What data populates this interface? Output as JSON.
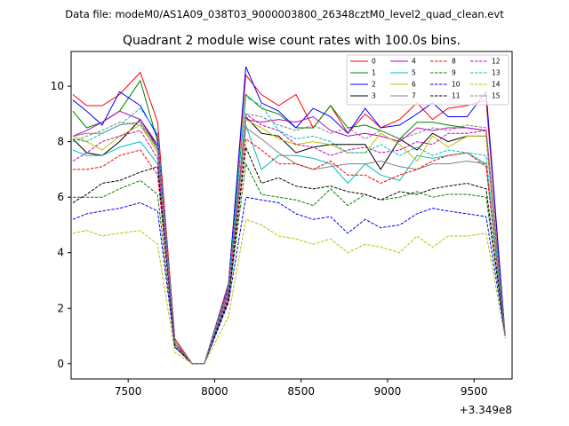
{
  "chart_data": {
    "type": "line",
    "suptitle": "Data file: modeM0/AS1A09_038T03_9000003800_26348cztM0_level2_quad_clean.evt",
    "title": "Quadrant 2 module wise count rates with 100.0s bins.",
    "xlabel": "",
    "ylabel": "",
    "offset_label": "+3.349e8",
    "xlim": [
      7170,
      9720
    ],
    "ylim": [
      -0.55,
      11.25
    ],
    "xticks": [
      7500,
      8000,
      8500,
      9000,
      9500
    ],
    "yticks": [
      0,
      2,
      4,
      6,
      8,
      10
    ],
    "legend_position": "top-right",
    "x": [
      7180,
      7260,
      7350,
      7450,
      7570,
      7670,
      7770,
      7870,
      7940,
      8080,
      8180,
      8270,
      8370,
      8470,
      8570,
      8670,
      8770,
      8870,
      8960,
      9070,
      9170,
      9260,
      9350,
      9460,
      9570,
      9680
    ],
    "series": [
      {
        "name": "0",
        "color": "#ff0000",
        "dash": "solid",
        "values": [
          9.7,
          9.3,
          9.3,
          9.7,
          10.5,
          8.7,
          0.9,
          0.0,
          0.0,
          2.9,
          10.4,
          9.7,
          9.3,
          9.7,
          8.5,
          9.3,
          8.3,
          9.0,
          8.5,
          8.8,
          9.4,
          8.8,
          9.2,
          9.3,
          9.5,
          1.0
        ]
      },
      {
        "name": "1",
        "color": "#008000",
        "dash": "solid",
        "values": [
          9.1,
          8.5,
          8.7,
          9.1,
          10.2,
          8.0,
          0.8,
          0.0,
          0.0,
          2.8,
          9.7,
          9.2,
          9.0,
          8.5,
          8.5,
          9.3,
          8.5,
          8.6,
          8.4,
          8.1,
          8.7,
          8.7,
          8.6,
          8.5,
          8.4,
          1.0
        ]
      },
      {
        "name": "2",
        "color": "#0000ff",
        "dash": "solid",
        "values": [
          9.5,
          9.1,
          8.6,
          9.8,
          9.3,
          8.2,
          0.8,
          0.0,
          0.0,
          2.8,
          10.7,
          9.4,
          9.1,
          8.5,
          9.2,
          8.9,
          8.3,
          9.2,
          8.5,
          8.6,
          9.0,
          9.4,
          8.9,
          8.9,
          9.8,
          1.0
        ]
      },
      {
        "name": "3",
        "color": "#000000",
        "dash": "solid",
        "values": [
          8.1,
          7.6,
          7.5,
          8.0,
          8.8,
          7.8,
          0.7,
          0.0,
          0.0,
          2.6,
          8.9,
          8.3,
          8.2,
          7.6,
          7.8,
          7.9,
          7.9,
          7.9,
          7.0,
          8.1,
          7.7,
          8.3,
          8.0,
          8.2,
          8.2,
          1.0
        ]
      },
      {
        "name": "4",
        "color": "#bf00bf",
        "dash": "solid",
        "values": [
          8.2,
          8.4,
          8.7,
          9.1,
          8.8,
          7.9,
          0.8,
          0.0,
          0.0,
          2.7,
          8.8,
          8.7,
          8.8,
          8.7,
          8.9,
          8.4,
          8.2,
          8.3,
          8.2,
          8.0,
          8.5,
          8.4,
          8.5,
          8.5,
          8.4,
          1.0
        ]
      },
      {
        "name": "5",
        "color": "#00bfbf",
        "dash": "solid",
        "values": [
          7.7,
          7.5,
          7.5,
          7.8,
          8.0,
          7.2,
          0.7,
          0.0,
          0.0,
          2.5,
          8.6,
          7.0,
          7.5,
          7.5,
          7.4,
          7.2,
          6.5,
          7.2,
          6.8,
          6.6,
          7.5,
          7.4,
          7.5,
          7.6,
          7.2,
          1.0
        ]
      },
      {
        "name": "6",
        "color": "#bfbf00",
        "dash": "solid",
        "values": [
          8.2,
          8.0,
          7.7,
          8.2,
          8.6,
          7.6,
          0.8,
          0.0,
          0.0,
          2.6,
          8.8,
          8.5,
          8.1,
          7.9,
          8.0,
          7.9,
          7.6,
          7.6,
          8.3,
          7.9,
          7.3,
          8.2,
          7.8,
          8.2,
          8.2,
          1.0
        ]
      },
      {
        "name": "7",
        "color": "#808080",
        "dash": "solid",
        "values": [
          8.2,
          8.3,
          8.3,
          8.6,
          8.7,
          7.7,
          0.8,
          0.0,
          0.0,
          2.6,
          8.5,
          8.1,
          7.6,
          7.2,
          7.0,
          7.1,
          7.2,
          7.2,
          7.3,
          7.1,
          7.0,
          7.2,
          7.2,
          7.3,
          7.2,
          1.0
        ]
      },
      {
        "name": "8",
        "color": "#ff0000",
        "dash": "dashed",
        "values": [
          7.0,
          7.0,
          7.1,
          7.5,
          7.7,
          6.8,
          0.7,
          0.0,
          0.0,
          2.4,
          8.1,
          7.7,
          7.2,
          7.2,
          7.0,
          7.3,
          6.8,
          6.8,
          6.5,
          6.8,
          7.0,
          7.3,
          7.5,
          7.6,
          7.1,
          1.0
        ]
      },
      {
        "name": "9",
        "color": "#008000",
        "dash": "dashed",
        "values": [
          6.0,
          6.0,
          6.0,
          6.3,
          6.6,
          6.1,
          0.6,
          0.0,
          0.0,
          2.3,
          7.2,
          6.1,
          6.0,
          5.9,
          5.7,
          6.3,
          5.7,
          6.1,
          5.9,
          6.0,
          6.2,
          6.0,
          6.1,
          6.1,
          6.0,
          1.0
        ]
      },
      {
        "name": "10",
        "color": "#0000ff",
        "dash": "dashed",
        "values": [
          5.2,
          5.4,
          5.5,
          5.6,
          5.8,
          5.5,
          0.6,
          0.0,
          0.0,
          2.2,
          6.0,
          5.9,
          5.8,
          5.4,
          5.2,
          5.3,
          4.7,
          5.2,
          4.9,
          5.0,
          5.4,
          5.6,
          5.5,
          5.4,
          5.3,
          1.0
        ]
      },
      {
        "name": "11",
        "color": "#000000",
        "dash": "dashed",
        "values": [
          5.8,
          6.1,
          6.5,
          6.6,
          6.9,
          7.1,
          0.6,
          0.0,
          0.0,
          2.3,
          7.8,
          6.5,
          6.7,
          6.4,
          6.3,
          6.4,
          6.2,
          6.1,
          5.9,
          6.2,
          6.1,
          6.3,
          6.4,
          6.5,
          6.3,
          1.0
        ]
      },
      {
        "name": "12",
        "color": "#bf00bf",
        "dash": "dashed",
        "values": [
          7.3,
          7.6,
          8.0,
          8.2,
          8.4,
          7.4,
          0.7,
          0.0,
          0.0,
          2.5,
          9.0,
          8.6,
          8.4,
          7.9,
          7.8,
          7.5,
          7.7,
          7.8,
          7.6,
          7.7,
          8.0,
          7.9,
          8.3,
          8.3,
          8.4,
          1.0
        ]
      },
      {
        "name": "13",
        "color": "#00bfbf",
        "dash": "dashed",
        "values": [
          8.1,
          8.0,
          8.3,
          8.6,
          9.2,
          8.3,
          0.8,
          0.0,
          0.0,
          2.8,
          9.6,
          9.3,
          8.4,
          8.1,
          8.2,
          8.0,
          7.6,
          7.6,
          7.9,
          7.5,
          7.8,
          7.5,
          7.7,
          7.6,
          7.5,
          1.0
        ]
      },
      {
        "name": "14",
        "color": "#bfbf00",
        "dash": "dashed",
        "values": [
          4.7,
          4.8,
          4.6,
          4.7,
          4.8,
          4.3,
          0.4,
          0.0,
          0.0,
          1.7,
          5.2,
          5.0,
          4.6,
          4.5,
          4.3,
          4.5,
          4.0,
          4.3,
          4.2,
          4.0,
          4.6,
          4.2,
          4.6,
          4.6,
          4.7,
          0.9
        ]
      },
      {
        "name": "15",
        "color": "#808080",
        "dash": "dashed",
        "values": [
          8.0,
          8.2,
          8.4,
          8.7,
          8.6,
          7.8,
          0.8,
          0.0,
          0.0,
          2.6,
          9.0,
          8.9,
          8.6,
          8.4,
          8.6,
          8.3,
          8.5,
          8.1,
          8.4,
          8.1,
          8.3,
          8.5,
          8.4,
          8.6,
          8.5,
          1.0
        ]
      }
    ]
  }
}
